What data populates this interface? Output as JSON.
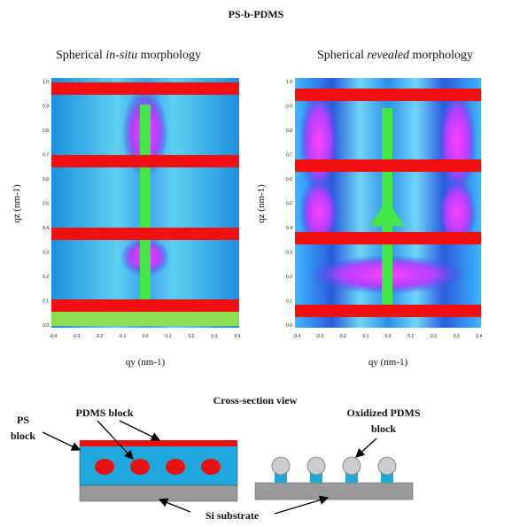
{
  "header": {
    "title": "PS-b-PDMS"
  },
  "panels": [
    {
      "title": {
        "prefix": "Spherical",
        "emphasis": "in-situ",
        "suffix": "morphology"
      },
      "y_label": "qz (nm-1)",
      "x_label": "qy (nm-1)",
      "y_ticks": [
        "0.0",
        "0.1",
        "0.2",
        "0.3",
        "0.4",
        "0.5",
        "0.6",
        "0.7",
        "0.8",
        "0.9",
        "1.0"
      ],
      "x_ticks": [
        "-0.4",
        "-0.3",
        "-0.2",
        "-0.1",
        "0.0",
        "0.1",
        "0.2",
        "0.3",
        "0.4"
      ]
    },
    {
      "title": {
        "prefix": "Spherical",
        "emphasis": "revealed",
        "suffix": "morphology"
      },
      "y_label": "qz (nm-1)",
      "x_label": "qy (nm-1)",
      "y_ticks": [
        "0.0",
        "0.1",
        "0.2",
        "0.3",
        "0.4",
        "0.5",
        "0.6",
        "0.7",
        "0.8",
        "0.9",
        "1.0"
      ],
      "x_ticks": [
        "-0.4",
        "-0.3",
        "-0.2",
        "-0.1",
        "0.0",
        "0.1",
        "0.2",
        "0.3",
        "0.4"
      ]
    }
  ],
  "schematic": {
    "title": "Cross-section view",
    "pdms_label": "PDMS block",
    "ps_label": [
      "PS",
      "block"
    ],
    "oxidized_label": [
      "Oxidized PDMS",
      "block"
    ],
    "substrate_label": "Si substrate"
  }
}
